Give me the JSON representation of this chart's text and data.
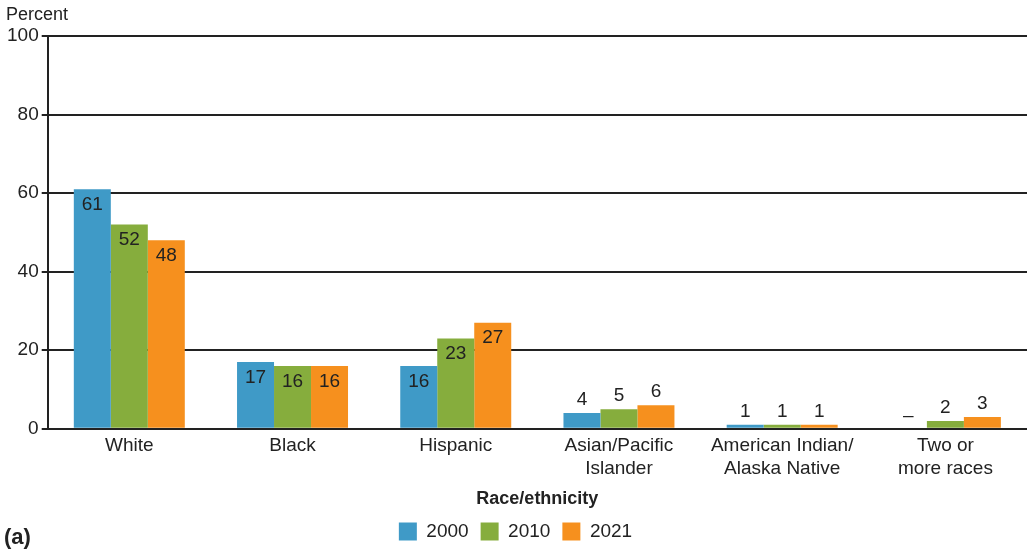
{
  "chart_data": {
    "type": "bar",
    "ylabel": "Percent",
    "xlabel": "Race/ethnicity",
    "categories": [
      "White",
      "Black",
      "Hispanic",
      "Asian/Pacific\nIslander",
      "American Indian/\nAlaska Native",
      "Two or\nmore races"
    ],
    "series": [
      {
        "name": "2000",
        "color": "#3f9ac7",
        "values": [
          61,
          17,
          16,
          4,
          1,
          null
        ],
        "value_labels": [
          "61",
          "17",
          "16",
          "4",
          "1",
          "–"
        ]
      },
      {
        "name": "2010",
        "color": "#86ad3d",
        "values": [
          52,
          16,
          23,
          5,
          1,
          2
        ],
        "value_labels": [
          "52",
          "16",
          "23",
          "5",
          "1",
          "2"
        ]
      },
      {
        "name": "2021",
        "color": "#f6901e",
        "values": [
          48,
          16,
          27,
          6,
          1,
          3
        ],
        "value_labels": [
          "48",
          "16",
          "27",
          "6",
          "1",
          "3"
        ]
      }
    ],
    "ylim": [
      0,
      100
    ],
    "yticks": [
      0,
      20,
      40,
      60,
      80,
      100
    ],
    "grid": "y",
    "legend": "bottom",
    "annotations": [
      "(a)"
    ]
  }
}
